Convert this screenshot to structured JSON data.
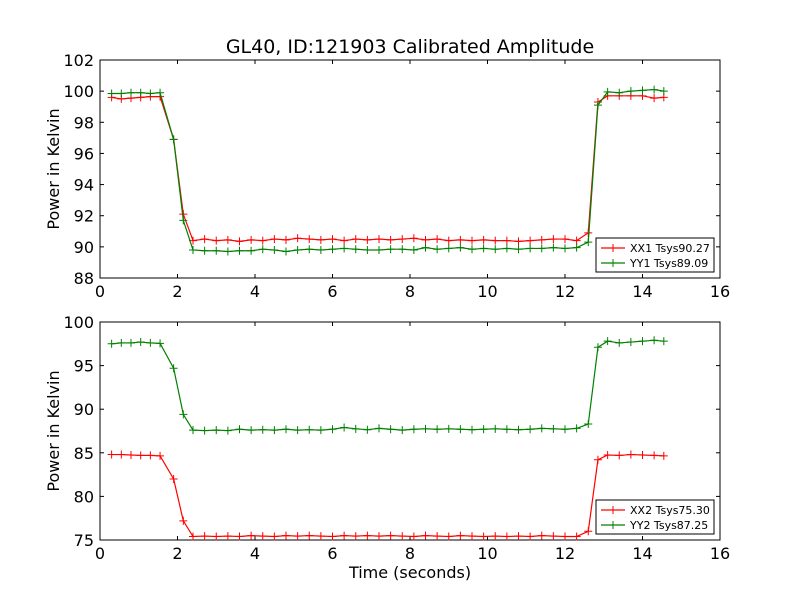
{
  "chart_data": [
    {
      "type": "line",
      "title": "GL40, ID:121903 Calibrated Amplitude",
      "xlabel": "",
      "ylabel": "Power in Kelvin",
      "xlim": [
        0,
        16
      ],
      "ylim": [
        88,
        102
      ],
      "xticks": [
        "0",
        "2",
        "4",
        "6",
        "8",
        "10",
        "12",
        "14",
        "16"
      ],
      "yticks": [
        "88",
        "90",
        "92",
        "94",
        "96",
        "98",
        "100",
        "102"
      ],
      "legend_position": "lower-right",
      "x": [
        0.3,
        0.55,
        0.8,
        1.05,
        1.3,
        1.55,
        1.9,
        2.15,
        2.4,
        2.7,
        3.0,
        3.3,
        3.6,
        3.9,
        4.2,
        4.5,
        4.8,
        5.1,
        5.4,
        5.7,
        6.0,
        6.3,
        6.6,
        6.9,
        7.2,
        7.5,
        7.8,
        8.1,
        8.4,
        8.7,
        9.0,
        9.3,
        9.6,
        9.9,
        10.2,
        10.5,
        10.8,
        11.1,
        11.4,
        11.7,
        12.0,
        12.3,
        12.6,
        12.85,
        13.1,
        13.4,
        13.7,
        14.0,
        14.3,
        14.55
      ],
      "series": [
        {
          "name": "XX1 Tsys90.27",
          "color": "#ff0000",
          "values": [
            99.6,
            99.5,
            99.55,
            99.6,
            99.65,
            99.65,
            96.9,
            92.1,
            90.4,
            90.5,
            90.4,
            90.45,
            90.35,
            90.45,
            90.4,
            90.5,
            90.45,
            90.55,
            90.5,
            90.45,
            90.5,
            90.4,
            90.5,
            90.45,
            90.5,
            90.45,
            90.5,
            90.55,
            90.45,
            90.5,
            90.4,
            90.45,
            90.4,
            90.45,
            90.4,
            90.4,
            90.35,
            90.4,
            90.45,
            90.5,
            90.5,
            90.4,
            90.9,
            99.3,
            99.7,
            99.7,
            99.7,
            99.7,
            99.55,
            99.6
          ]
        },
        {
          "name": "YY1 Tsys89.09",
          "color": "#008000",
          "values": [
            99.85,
            99.85,
            99.9,
            99.9,
            99.85,
            99.9,
            96.9,
            91.7,
            89.8,
            89.75,
            89.75,
            89.7,
            89.75,
            89.75,
            89.85,
            89.8,
            89.7,
            89.8,
            89.85,
            89.8,
            89.85,
            89.9,
            89.85,
            89.8,
            89.8,
            89.85,
            89.85,
            89.8,
            89.95,
            89.85,
            89.9,
            89.95,
            89.85,
            89.9,
            89.85,
            89.9,
            89.85,
            89.9,
            89.9,
            89.95,
            89.9,
            89.95,
            90.3,
            99.1,
            99.95,
            99.9,
            100.0,
            100.05,
            100.1,
            100.0
          ]
        }
      ]
    },
    {
      "type": "line",
      "title": "",
      "xlabel": "Time (seconds)",
      "ylabel": "Power in Kelvin",
      "xlim": [
        0,
        16
      ],
      "ylim": [
        75,
        100
      ],
      "xticks": [
        "0",
        "2",
        "4",
        "6",
        "8",
        "10",
        "12",
        "14",
        "16"
      ],
      "yticks": [
        "75",
        "80",
        "85",
        "90",
        "95",
        "100"
      ],
      "legend_position": "lower-right",
      "x": [
        0.3,
        0.55,
        0.8,
        1.05,
        1.3,
        1.55,
        1.9,
        2.15,
        2.4,
        2.7,
        3.0,
        3.3,
        3.6,
        3.9,
        4.2,
        4.5,
        4.8,
        5.1,
        5.4,
        5.7,
        6.0,
        6.3,
        6.6,
        6.9,
        7.2,
        7.5,
        7.8,
        8.1,
        8.4,
        8.7,
        9.0,
        9.3,
        9.6,
        9.9,
        10.2,
        10.5,
        10.8,
        11.1,
        11.4,
        11.7,
        12.0,
        12.3,
        12.6,
        12.85,
        13.1,
        13.4,
        13.7,
        14.0,
        14.3,
        14.55
      ],
      "series": [
        {
          "name": "XX2 Tsys75.30",
          "color": "#ff0000",
          "values": [
            84.8,
            84.8,
            84.75,
            84.7,
            84.7,
            84.65,
            82.0,
            77.2,
            75.4,
            75.45,
            75.4,
            75.45,
            75.4,
            75.5,
            75.45,
            75.4,
            75.5,
            75.45,
            75.5,
            75.45,
            75.4,
            75.5,
            75.45,
            75.5,
            75.45,
            75.5,
            75.45,
            75.4,
            75.5,
            75.45,
            75.4,
            75.5,
            75.45,
            75.4,
            75.45,
            75.4,
            75.45,
            75.4,
            75.5,
            75.45,
            75.4,
            75.4,
            76.0,
            84.2,
            84.75,
            84.7,
            84.8,
            84.75,
            84.7,
            84.65
          ]
        },
        {
          "name": "YY2 Tsys87.25",
          "color": "#008000",
          "values": [
            97.5,
            97.6,
            97.6,
            97.7,
            97.6,
            97.55,
            94.7,
            89.4,
            87.6,
            87.55,
            87.6,
            87.55,
            87.7,
            87.6,
            87.65,
            87.6,
            87.7,
            87.6,
            87.65,
            87.6,
            87.7,
            87.9,
            87.75,
            87.65,
            87.8,
            87.7,
            87.6,
            87.7,
            87.75,
            87.7,
            87.75,
            87.7,
            87.65,
            87.7,
            87.75,
            87.7,
            87.65,
            87.7,
            87.8,
            87.75,
            87.7,
            87.8,
            88.3,
            97.1,
            97.8,
            97.6,
            97.7,
            97.8,
            97.9,
            97.8
          ]
        }
      ]
    }
  ]
}
